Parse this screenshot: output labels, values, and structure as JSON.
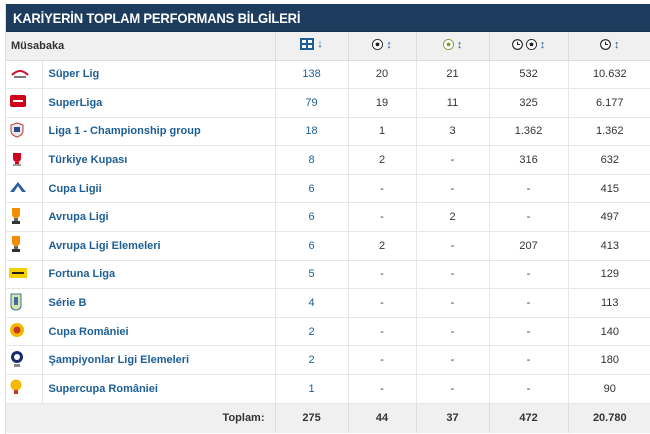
{
  "title": "KARİYERİN TOPLAM PERFORMANS BİLGİLERİ",
  "header": {
    "competition": "Müsabaka",
    "sort_glyph": "↕",
    "sort_down_glyph": "↓",
    "icons": [
      "squad-icon",
      "goal-ball-icon",
      "assist-ball-icon",
      "minutes-per-goal-icon",
      "minutes-played-icon"
    ]
  },
  "rows": [
    {
      "name": "Süper Lig",
      "apps": "138",
      "goals": "20",
      "assists": "21",
      "mpg": "532",
      "minutes": "10.632",
      "logo": "super-lig-logo"
    },
    {
      "name": "SuperLiga",
      "apps": "79",
      "goals": "19",
      "assists": "11",
      "mpg": "325",
      "minutes": "6.177",
      "logo": "superliga-logo"
    },
    {
      "name": "Liga 1 - Championship group",
      "apps": "18",
      "goals": "1",
      "assists": "3",
      "mpg": "1.362",
      "minutes": "1.362",
      "logo": "liga1-logo"
    },
    {
      "name": "Türkiye Kupası",
      "apps": "8",
      "goals": "2",
      "assists": "-",
      "mpg": "316",
      "minutes": "632",
      "logo": "turkiye-kupasi-logo"
    },
    {
      "name": "Cupa Ligii",
      "apps": "6",
      "goals": "-",
      "assists": "-",
      "mpg": "-",
      "minutes": "415",
      "logo": "cupa-ligii-logo"
    },
    {
      "name": "Avrupa Ligi",
      "apps": "6",
      "goals": "-",
      "assists": "2",
      "mpg": "-",
      "minutes": "497",
      "logo": "europa-league-logo"
    },
    {
      "name": "Avrupa Ligi Elemeleri",
      "apps": "6",
      "goals": "2",
      "assists": "-",
      "mpg": "207",
      "minutes": "413",
      "logo": "europa-league-qual-logo"
    },
    {
      "name": "Fortuna Liga",
      "apps": "5",
      "goals": "-",
      "assists": "-",
      "mpg": "-",
      "minutes": "129",
      "logo": "fortuna-liga-logo"
    },
    {
      "name": "Série B",
      "apps": "4",
      "goals": "-",
      "assists": "-",
      "mpg": "-",
      "minutes": "113",
      "logo": "serie-b-logo"
    },
    {
      "name": "Cupa României",
      "apps": "2",
      "goals": "-",
      "assists": "-",
      "mpg": "-",
      "minutes": "140",
      "logo": "cupa-romaniei-logo"
    },
    {
      "name": "Şampiyonlar Ligi Elemeleri",
      "apps": "2",
      "goals": "-",
      "assists": "-",
      "mpg": "-",
      "minutes": "180",
      "logo": "champions-league-qual-logo"
    },
    {
      "name": "Supercupa României",
      "apps": "1",
      "goals": "-",
      "assists": "-",
      "mpg": "-",
      "minutes": "90",
      "logo": "supercupa-logo"
    }
  ],
  "totals": {
    "label": "Toplam:",
    "apps": "275",
    "goals": "44",
    "assists": "37",
    "mpg": "472",
    "minutes": "20.780"
  },
  "colors": {
    "title_bg": "#1d3b5c",
    "link": "#1d5f95",
    "header_bg": "#f0f0f0"
  }
}
